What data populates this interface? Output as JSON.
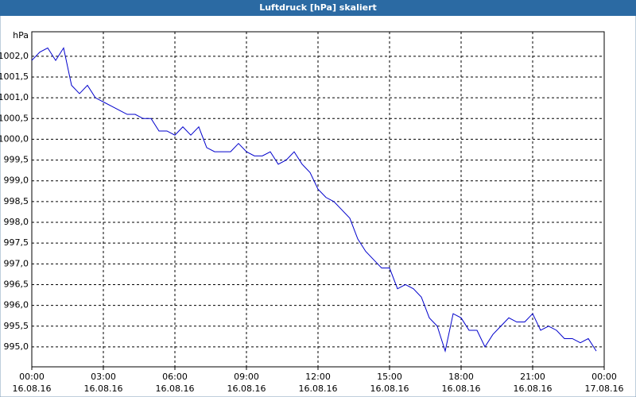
{
  "chart_data": {
    "type": "line",
    "title": "Luftdruck [hPa] skaliert",
    "y_unit": "hPa",
    "x": [
      0,
      20,
      40,
      60,
      80,
      100,
      120,
      140,
      160,
      180,
      200,
      220,
      240,
      260,
      280,
      300,
      320,
      340,
      360,
      380,
      400,
      420,
      440,
      460,
      480,
      500,
      520,
      540,
      560,
      580,
      600,
      620,
      640,
      660,
      680,
      700,
      720,
      740,
      760,
      780,
      800,
      820,
      840,
      860,
      880,
      900,
      920,
      940,
      960,
      980,
      1000,
      1020,
      1040,
      1060,
      1080,
      1100,
      1120,
      1140,
      1160,
      1180,
      1200,
      1220,
      1240,
      1260,
      1280,
      1300,
      1320,
      1340,
      1360,
      1380,
      1400,
      1420
    ],
    "series": [
      {
        "name": "Luftdruck",
        "color": "#0000cc",
        "values": [
          1001.9,
          1002.1,
          1002.2,
          1001.9,
          1002.2,
          1001.3,
          1001.1,
          1001.3,
          1001.0,
          1000.9,
          1000.8,
          1000.7,
          1000.6,
          1000.6,
          1000.5,
          1000.5,
          1000.2,
          1000.2,
          1000.1,
          1000.3,
          1000.1,
          1000.3,
          999.8,
          999.7,
          999.7,
          999.7,
          999.9,
          999.7,
          999.6,
          999.6,
          999.7,
          999.4,
          999.5,
          999.7,
          999.4,
          999.2,
          998.8,
          998.6,
          998.5,
          998.3,
          998.1,
          997.6,
          997.3,
          997.1,
          996.9,
          996.9,
          996.4,
          996.5,
          996.4,
          996.2,
          995.7,
          995.5,
          994.9,
          995.8,
          995.7,
          995.4,
          995.4,
          995.0,
          995.3,
          995.5,
          995.7,
          995.6,
          995.6,
          995.8,
          995.4,
          995.5,
          995.4,
          995.2,
          995.2,
          995.1,
          995.2,
          994.9
        ]
      }
    ],
    "xlim": [
      0,
      1440
    ],
    "xticks": [
      {
        "value": 0,
        "label": "00:00"
      },
      {
        "value": 180,
        "label": "03:00"
      },
      {
        "value": 360,
        "label": "06:00"
      },
      {
        "value": 540,
        "label": "09:00"
      },
      {
        "value": 720,
        "label": "12:00"
      },
      {
        "value": 900,
        "label": "15:00"
      },
      {
        "value": 1080,
        "label": "18:00"
      },
      {
        "value": 1260,
        "label": "21:00"
      },
      {
        "value": 1440,
        "label": "00:00"
      }
    ],
    "xtick_dates": [
      "16.08.16",
      "16.08.16",
      "16.08.16",
      "16.08.16",
      "16.08.16",
      "16.08.16",
      "16.08.16",
      "16.08.16",
      "17.08.16"
    ],
    "ylim": [
      994.52,
      1002.59
    ],
    "yticks": [
      {
        "value": 995,
        "label": "995,0"
      },
      {
        "value": 995.5,
        "label": "995,5"
      },
      {
        "value": 996,
        "label": "996,0"
      },
      {
        "value": 996.5,
        "label": "996,5"
      },
      {
        "value": 997,
        "label": "997,0"
      },
      {
        "value": 997.5,
        "label": "997,5"
      },
      {
        "value": 998,
        "label": "998,0"
      },
      {
        "value": 998.5,
        "label": "998,5"
      },
      {
        "value": 999,
        "label": "999,0"
      },
      {
        "value": 999.5,
        "label": "999,5"
      },
      {
        "value": 1000,
        "label": "1000,0"
      },
      {
        "value": 1000.5,
        "label": "1000,5"
      },
      {
        "value": 1001,
        "label": "1001,0"
      },
      {
        "value": 1001.5,
        "label": "1001,5"
      },
      {
        "value": 1002,
        "label": "1002,0"
      }
    ],
    "grid": true
  }
}
